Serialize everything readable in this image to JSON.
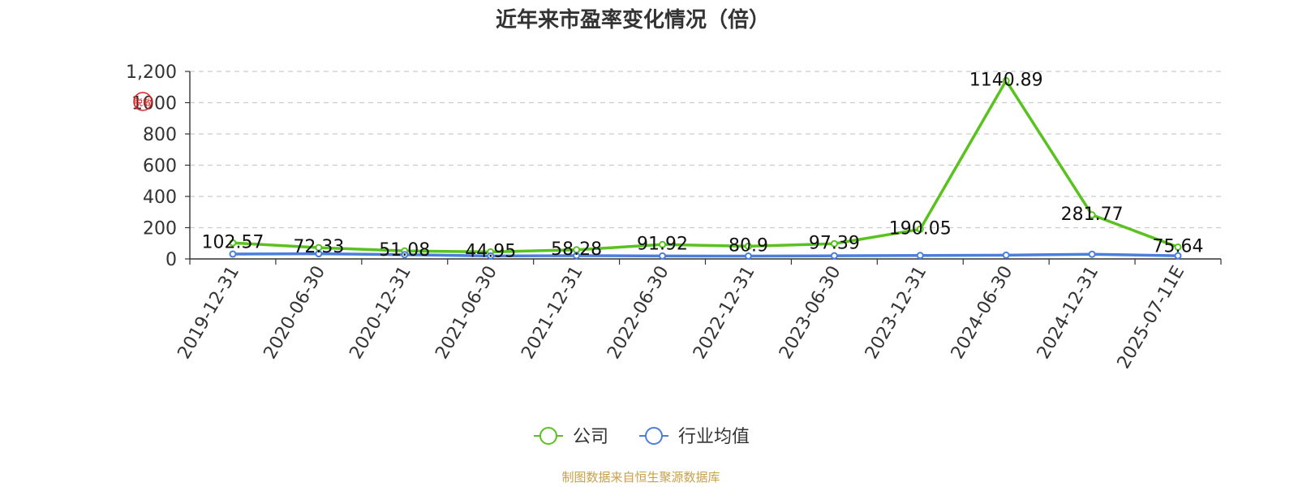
{
  "chart_data": {
    "type": "line",
    "title": "近年来市盈率变化情况（倍）",
    "categories": [
      "2019-12-31",
      "2020-06-30",
      "2020-12-31",
      "2021-06-30",
      "2021-12-31",
      "2022-06-30",
      "2022-12-31",
      "2023-06-30",
      "2023-12-31",
      "2024-06-30",
      "2024-12-31",
      "2025-07-11E"
    ],
    "series": [
      {
        "name": "公司",
        "color": "#5ac21f",
        "values": [
          102.57,
          72.33,
          51.08,
          44.95,
          58.28,
          91.92,
          80.9,
          97.39,
          190.05,
          1140.89,
          281.77,
          75.64
        ],
        "labels": [
          "102.57",
          "72.33",
          "51.08",
          "44.95",
          "58.28",
          "91.92",
          "80.9",
          "97.39",
          "190.05",
          "1140.89",
          "281.77",
          "75.64"
        ]
      },
      {
        "name": "行业均值",
        "color": "#4a7fdc",
        "values": [
          31,
          33,
          27,
          19,
          21,
          19,
          18,
          20,
          22,
          24,
          30,
          20
        ]
      }
    ],
    "yticks": [
      "0",
      "200",
      "400",
      "600",
      "800",
      "1000",
      "1,200"
    ],
    "ylim": [
      0,
      1200
    ],
    "grid": true,
    "legend_position": "bottom-center"
  },
  "watermark_text": "脱敏",
  "source_text": "制图数据来自恒生聚源数据库"
}
